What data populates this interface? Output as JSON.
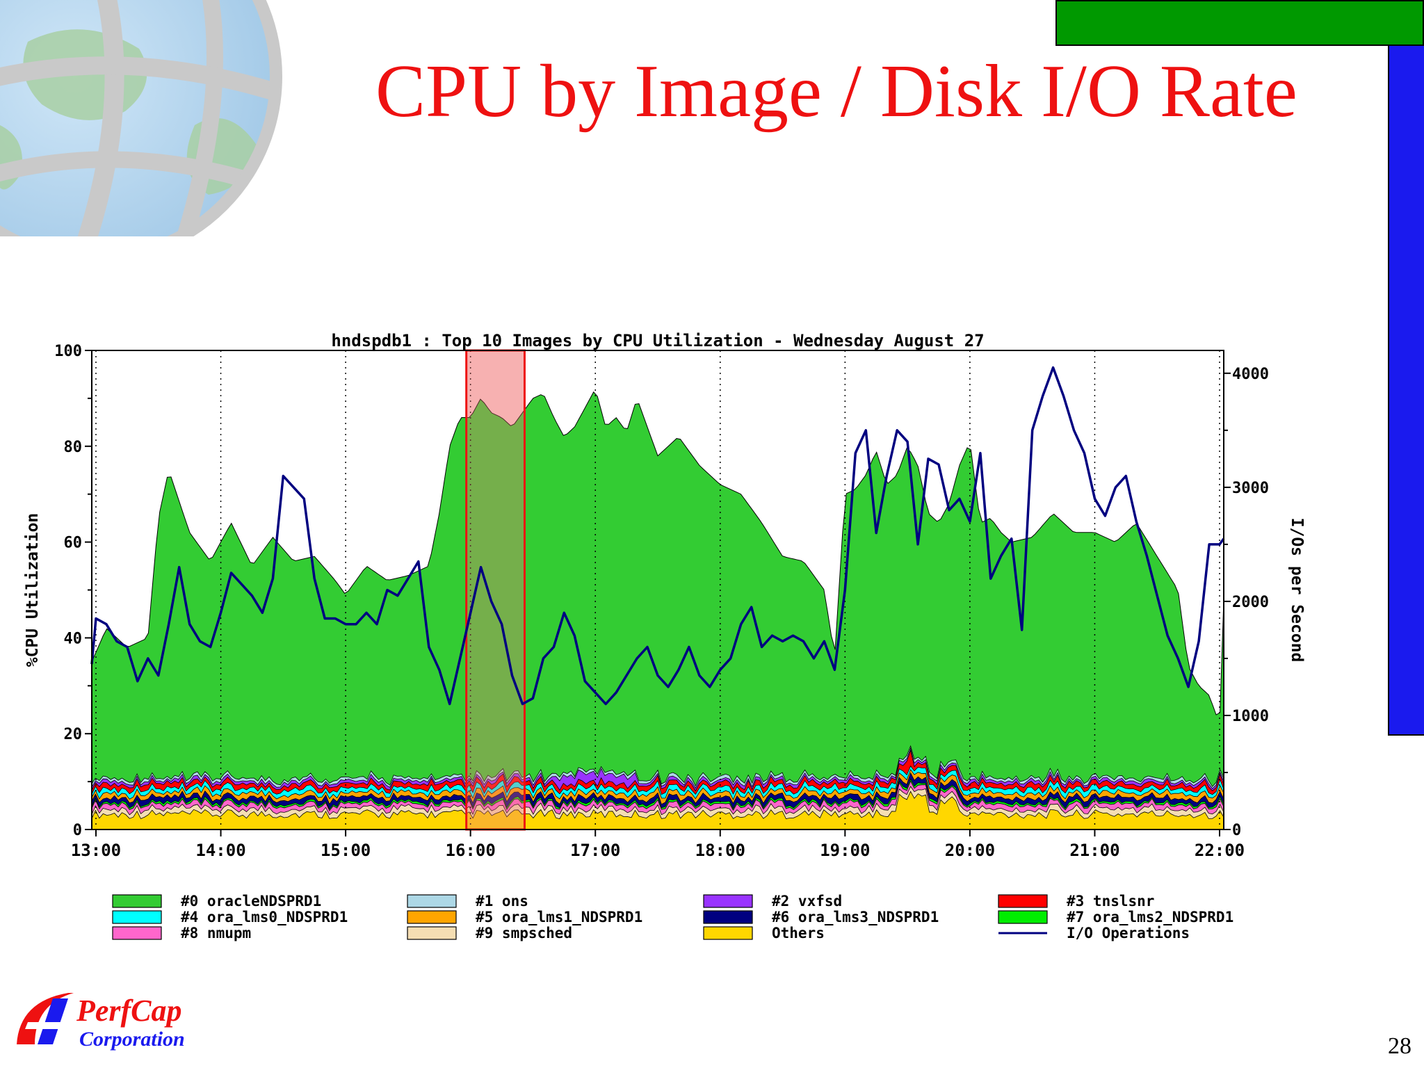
{
  "slide": {
    "title": "CPU by Image / Disk I/O Rate",
    "page_number": "28",
    "logo_line1": "PerfCap",
    "logo_line2": "Corporation",
    "colors": {
      "title": "#ee1111",
      "top_bar": "#009900",
      "side_bar": "#1a1aee"
    }
  },
  "chart_data": {
    "type": "area",
    "title": "hndspdb1 : Top 10 Images by CPU Utilization - Wednesday August 27",
    "ylabel": "%CPU Utilization",
    "y2label": "I/Os per Second",
    "ylim": [
      0,
      100
    ],
    "y2lim": [
      0,
      4200
    ],
    "yticks": [
      0,
      20,
      40,
      60,
      80,
      100
    ],
    "y2ticks": [
      0,
      1000,
      2000,
      3000,
      4000
    ],
    "xlim": [
      "12:58",
      "22:02"
    ],
    "xticks": [
      "13:00",
      "14:00",
      "15:00",
      "16:00",
      "17:00",
      "18:00",
      "19:00",
      "20:00",
      "21:00",
      "22:00"
    ],
    "grid": "vertical-dotted",
    "legend_position": "bottom",
    "highlight": {
      "from": "15:58",
      "to": "16:26",
      "color": "rgba(240,120,120,0.35)",
      "border": "#ee1111"
    },
    "legend": [
      {
        "label": "#0 oracleNDSPRD1",
        "color": "#33cc33",
        "kind": "area"
      },
      {
        "label": "#1 ons",
        "color": "#add8e6",
        "kind": "area"
      },
      {
        "label": "#2 vxfsd",
        "color": "#9933ff",
        "kind": "area"
      },
      {
        "label": "#3 tnslsnr",
        "color": "#ff0000",
        "kind": "area"
      },
      {
        "label": "#4 ora_lms0_NDSPRD1",
        "color": "#00ffff",
        "kind": "area"
      },
      {
        "label": "#5 ora_lms1_NDSPRD1",
        "color": "#ffa500",
        "kind": "area"
      },
      {
        "label": "#6 ora_lms3_NDSPRD1",
        "color": "#000080",
        "kind": "area"
      },
      {
        "label": "#7 ora_lms2_NDSPRD1",
        "color": "#00ee00",
        "kind": "area"
      },
      {
        "label": "#8 nmupm",
        "color": "#ff66cc",
        "kind": "area"
      },
      {
        "label": "#9 smpsched",
        "color": "#f5deb3",
        "kind": "area"
      },
      {
        "label": "Others",
        "color": "#ffd700",
        "kind": "area"
      },
      {
        "label": "I/O Operations",
        "color": "#000080",
        "kind": "line"
      }
    ],
    "series": [
      {
        "name": "Total CPU %",
        "x": [
          "12:58",
          "13:05",
          "13:15",
          "13:25",
          "13:30",
          "13:35",
          "13:45",
          "13:55",
          "14:00",
          "14:05",
          "14:15",
          "14:25",
          "14:35",
          "14:45",
          "14:55",
          "15:00",
          "15:10",
          "15:20",
          "15:30",
          "15:40",
          "15:45",
          "15:50",
          "15:55",
          "16:00",
          "16:05",
          "16:10",
          "16:15",
          "16:20",
          "16:25",
          "16:30",
          "16:35",
          "16:40",
          "16:45",
          "16:50",
          "16:55",
          "17:00",
          "17:05",
          "17:10",
          "17:15",
          "17:20",
          "17:25",
          "17:30",
          "17:35",
          "17:40",
          "17:50",
          "18:00",
          "18:10",
          "18:20",
          "18:30",
          "18:40",
          "18:50",
          "18:55",
          "19:00",
          "19:05",
          "19:10",
          "19:15",
          "19:20",
          "19:25",
          "19:30",
          "19:35",
          "19:40",
          "19:45",
          "19:50",
          "19:55",
          "20:00",
          "20:05",
          "20:10",
          "20:15",
          "20:20",
          "20:30",
          "20:40",
          "20:50",
          "21:00",
          "21:10",
          "21:15",
          "21:20",
          "21:30",
          "21:40",
          "21:45",
          "21:50",
          "21:55",
          "22:00",
          "22:02"
        ],
        "values": [
          35,
          42,
          38,
          40,
          65,
          75,
          62,
          56,
          60,
          64,
          55,
          61,
          56,
          57,
          52,
          49,
          55,
          52,
          53,
          55,
          66,
          80,
          86,
          86,
          90,
          87,
          86,
          84,
          87,
          90,
          91,
          86,
          82,
          84,
          88,
          92,
          84,
          86,
          83,
          90,
          84,
          78,
          80,
          82,
          76,
          72,
          70,
          64,
          57,
          56,
          50,
          36,
          70,
          71,
          74,
          79,
          72,
          74,
          80,
          76,
          66,
          64,
          68,
          76,
          81,
          64,
          65,
          62,
          60,
          61,
          66,
          62,
          62,
          60,
          62,
          64,
          57,
          50,
          34,
          30,
          28,
          22,
          48
        ]
      },
      {
        "name": "I/O Operations",
        "x": [
          "12:58",
          "13:00",
          "13:05",
          "13:10",
          "13:15",
          "13:20",
          "13:25",
          "13:30",
          "13:35",
          "13:40",
          "13:45",
          "13:50",
          "13:55",
          "14:00",
          "14:05",
          "14:10",
          "14:15",
          "14:20",
          "14:25",
          "14:30",
          "14:35",
          "14:40",
          "14:45",
          "14:50",
          "14:55",
          "15:00",
          "15:05",
          "15:10",
          "15:15",
          "15:20",
          "15:25",
          "15:30",
          "15:35",
          "15:40",
          "15:45",
          "15:50",
          "15:55",
          "16:00",
          "16:05",
          "16:10",
          "16:15",
          "16:20",
          "16:25",
          "16:30",
          "16:35",
          "16:40",
          "16:45",
          "16:50",
          "16:55",
          "17:00",
          "17:05",
          "17:10",
          "17:15",
          "17:20",
          "17:25",
          "17:30",
          "17:35",
          "17:40",
          "17:45",
          "17:50",
          "17:55",
          "18:00",
          "18:05",
          "18:10",
          "18:15",
          "18:20",
          "18:25",
          "18:30",
          "18:35",
          "18:40",
          "18:45",
          "18:50",
          "18:55",
          "19:00",
          "19:05",
          "19:10",
          "19:15",
          "19:20",
          "19:25",
          "19:30",
          "19:35",
          "19:40",
          "19:45",
          "19:50",
          "19:55",
          "20:00",
          "20:05",
          "20:10",
          "20:15",
          "20:20",
          "20:25",
          "20:30",
          "20:35",
          "20:40",
          "20:45",
          "20:50",
          "20:55",
          "21:00",
          "21:05",
          "21:10",
          "21:15",
          "21:20",
          "21:25",
          "21:30",
          "21:35",
          "21:40",
          "21:45",
          "21:50",
          "21:55",
          "22:00",
          "22:02"
        ],
        "values": [
          1450,
          1850,
          1800,
          1650,
          1600,
          1300,
          1500,
          1350,
          1800,
          2300,
          1800,
          1650,
          1600,
          1900,
          2250,
          2150,
          2050,
          1900,
          2200,
          3100,
          3000,
          2900,
          2200,
          1850,
          1850,
          1800,
          1800,
          1900,
          1800,
          2100,
          2050,
          2200,
          2350,
          1600,
          1400,
          1100,
          1500,
          1900,
          2300,
          2000,
          1800,
          1350,
          1100,
          1150,
          1500,
          1600,
          1900,
          1700,
          1300,
          1200,
          1100,
          1200,
          1350,
          1500,
          1600,
          1350,
          1250,
          1400,
          1600,
          1350,
          1250,
          1400,
          1500,
          1800,
          1950,
          1600,
          1700,
          1650,
          1700,
          1650,
          1500,
          1650,
          1400,
          2100,
          3300,
          3500,
          2600,
          3100,
          3500,
          3400,
          2500,
          3250,
          3200,
          2800,
          2900,
          2700,
          3300,
          2200,
          2400,
          2550,
          1750,
          3500,
          3800,
          4050,
          3800,
          3500,
          3300,
          2900,
          2750,
          3000,
          3100,
          2700,
          2400,
          2050,
          1700,
          1500,
          1250,
          1650,
          2500,
          2500,
          2550
        ]
      }
    ]
  }
}
